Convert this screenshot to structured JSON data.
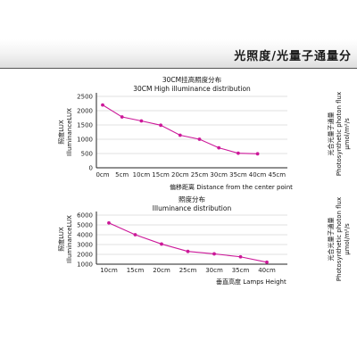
{
  "header": {
    "title": "光照度/光量子通量分"
  },
  "chart_data": [
    {
      "type": "line",
      "title": "30CM挂高照度分布",
      "subtitle": "30CM High illuminance distribution",
      "xlabel": "偏移距离 Distance from the center point",
      "ylabel": [
        "照度LUX",
        "IlluminanceLUX"
      ],
      "right_label": [
        "光合光量子通量",
        "Photosynthetic photon flux",
        "μmol/m²/s"
      ],
      "categories": [
        "0cm",
        "5cm",
        "10cm",
        "15cm",
        "20cm",
        "25cm",
        "30cm",
        "35cm",
        "40cm",
        "45cm"
      ],
      "values": [
        2200,
        1780,
        1640,
        1490,
        1140,
        1000,
        700,
        510,
        490,
        null
      ],
      "yticks": [
        0,
        500,
        1000,
        1500,
        2000,
        2500
      ],
      "ylim": [
        0,
        2500
      ],
      "grid": true
    },
    {
      "type": "line",
      "title": "照度分布",
      "subtitle": "Illuminance distribution",
      "xlabel": "垂直高度 Lamps Height",
      "ylabel": [
        "照度LUX",
        "IlluminanceLUX"
      ],
      "right_label": [
        "光合光量子通量",
        "Photosynthetic photon flux",
        "μmol/m²/s"
      ],
      "categories": [
        "10cm",
        "15cm",
        "20cm",
        "25cm",
        "30cm",
        "35cm",
        "40cm"
      ],
      "values": [
        5200,
        4000,
        3050,
        2300,
        2050,
        1750,
        1200
      ],
      "yticks": [
        1000,
        2000,
        3000,
        4000,
        5000,
        6000
      ],
      "ylim": [
        1000,
        6000
      ],
      "grid": true
    }
  ]
}
